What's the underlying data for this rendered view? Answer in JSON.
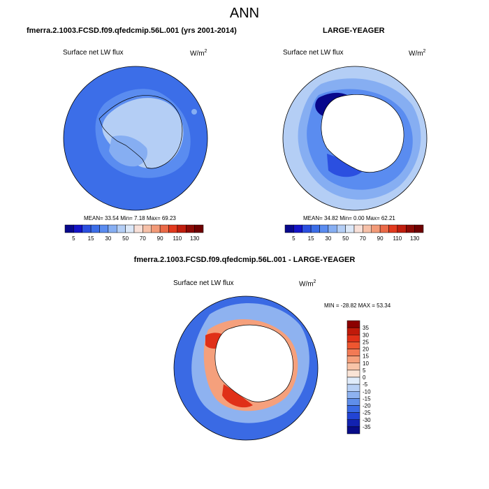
{
  "main_title": "ANN",
  "panels": {
    "left": {
      "title": "fmerra.2.1003.FCSD.f09.qfedcmip.56L.001 (yrs 2001-2014)",
      "field": "Surface net LW flux",
      "units_base": "W/m",
      "units_exp": "2",
      "stats_text": "MEAN=  33.54  Min=   7.18  Max=  69.23"
    },
    "right": {
      "title": "LARGE-YEAGER",
      "field": "Surface net LW flux",
      "units_base": "W/m",
      "units_exp": "2",
      "stats_text": "MEAN=  34.82  Min=   0.00  Max=  62.21"
    },
    "diff": {
      "title": "fmerra.2.1003.FCSD.f09.qfedcmip.56L.001 - LARGE-YEAGER",
      "field": "Surface net LW flux",
      "units_base": "W/m",
      "units_exp": "2",
      "stats_text": "MIN = -28.82 MAX =  53.34"
    }
  },
  "colorbars": {
    "abs": {
      "labels": [
        "5",
        "15",
        "30",
        "50",
        "70",
        "90",
        "110",
        "130"
      ],
      "colors": [
        "#08088c",
        "#1414c8",
        "#2b4fe0",
        "#3c6ee8",
        "#5a8cf0",
        "#86aef2",
        "#b4cef5",
        "#dce8f8",
        "#f8e0d8",
        "#f6c0a8",
        "#f29a78",
        "#ea6a48",
        "#e23a1e",
        "#c01e0e",
        "#8c0a04",
        "#6e0000"
      ]
    },
    "diff": {
      "labels": [
        "35",
        "30",
        "25",
        "20",
        "15",
        "10",
        "5",
        "0",
        "-5",
        "-10",
        "-15",
        "-20",
        "-25",
        "-30",
        "-35"
      ],
      "colors": [
        "#8c0000",
        "#c01a0a",
        "#e03018",
        "#ee5630",
        "#f27a55",
        "#f5a07c",
        "#f8c4a8",
        "#fae4d6",
        "#e0ecfb",
        "#b8d0f5",
        "#8eb2f0",
        "#5f8eea",
        "#3a6ae4",
        "#2244d4",
        "#1222b0",
        "#080c88"
      ]
    }
  },
  "chart_data": [
    {
      "type": "heatmap",
      "title": "fmerra.2.1003.FCSD.f09.qfedcmip.56L.001 (yrs 2001-2014)",
      "variable": "Surface net LW flux",
      "units": "W/m2",
      "projection": "south polar stereographic",
      "colorbar_levels": [
        5,
        10,
        15,
        20,
        30,
        40,
        50,
        60,
        70,
        80,
        90,
        100,
        110,
        120,
        130
      ],
      "stats": {
        "mean": 33.54,
        "min": 7.18,
        "max": 69.23
      }
    },
    {
      "type": "heatmap",
      "title": "LARGE-YEAGER",
      "variable": "Surface net LW flux",
      "units": "W/m2",
      "projection": "south polar stereographic",
      "colorbar_levels": [
        5,
        10,
        15,
        20,
        30,
        40,
        50,
        60,
        70,
        80,
        90,
        100,
        110,
        120,
        130
      ],
      "stats": {
        "mean": 34.82,
        "min": 0.0,
        "max": 62.21
      }
    },
    {
      "type": "heatmap",
      "title": "fmerra.2.1003.FCSD.f09.qfedcmip.56L.001 - LARGE-YEAGER",
      "variable": "Surface net LW flux",
      "units": "W/m2",
      "projection": "south polar stereographic",
      "colorbar_levels": [
        -35,
        -30,
        -25,
        -20,
        -15,
        -10,
        -5,
        0,
        5,
        10,
        15,
        20,
        25,
        30,
        35
      ],
      "stats": {
        "min": -28.82,
        "max": 53.34
      }
    }
  ]
}
